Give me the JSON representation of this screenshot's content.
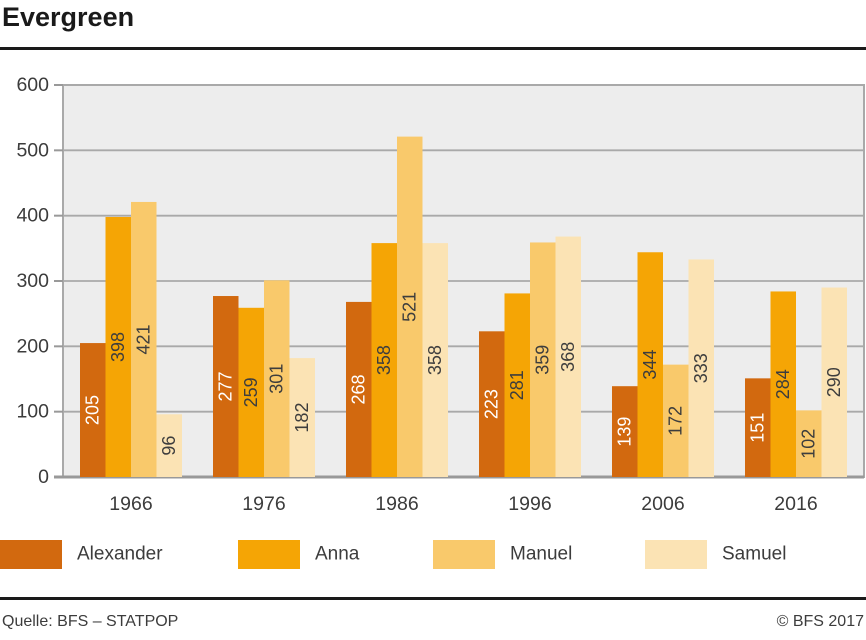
{
  "title": "Evergreen",
  "chart_data": {
    "type": "bar",
    "title": "Evergreen",
    "categories": [
      "1966",
      "1976",
      "1986",
      "1996",
      "2006",
      "2016"
    ],
    "series": [
      {
        "name": "Alexander",
        "color": "#d2690f",
        "label_color": "#ffffff",
        "values": [
          205,
          277,
          268,
          223,
          139,
          151
        ]
      },
      {
        "name": "Anna",
        "color": "#f5a505",
        "label_color": "#3d3d3d",
        "values": [
          398,
          259,
          358,
          281,
          344,
          284
        ]
      },
      {
        "name": "Manuel",
        "color": "#f9c96b",
        "label_color": "#3d3d3d",
        "values": [
          421,
          301,
          521,
          359,
          172,
          102
        ]
      },
      {
        "name": "Samuel",
        "color": "#fbe3b4",
        "label_color": "#3d3d3d",
        "values": [
          96,
          182,
          358,
          368,
          333,
          290
        ]
      }
    ],
    "xlabel": "",
    "ylabel": "",
    "ylim": [
      0,
      600
    ],
    "yticks": [
      0,
      100,
      200,
      300,
      400,
      500,
      600
    ],
    "grid": true,
    "value_labels": "rotated 90deg, centered inside bars",
    "legend_position": "bottom"
  },
  "legend": {
    "items": [
      {
        "label": "Alexander",
        "color": "#d2690f"
      },
      {
        "label": "Anna",
        "color": "#f5a505"
      },
      {
        "label": "Manuel",
        "color": "#f9c96b"
      },
      {
        "label": "Samuel",
        "color": "#fbe3b4"
      }
    ]
  },
  "footer": {
    "source": "Quelle: BFS – STATPOP",
    "copyright": "© BFS 2017"
  },
  "colors": {
    "plot_background": "#ededed",
    "gridline": "#a9a9a9",
    "axis": "#999999",
    "tick_text": "#3c3c3c",
    "title_text": "#1a1a1a",
    "rule": "#1a1a1a"
  }
}
